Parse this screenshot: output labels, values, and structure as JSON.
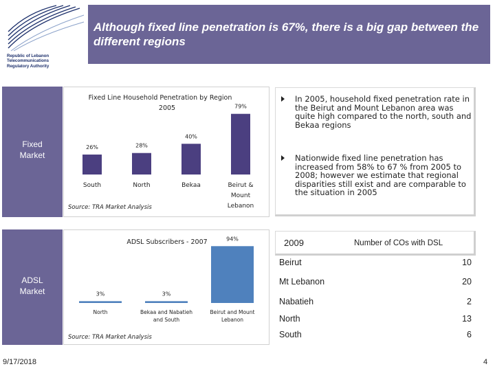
{
  "logo": {
    "text_lines": [
      "Republic of Lebanon",
      "Telecommunications",
      "Regulatory Authority"
    ]
  },
  "banner": {
    "title": "Although fixed line penetration is 67%, there is a big gap between the different regions"
  },
  "side_labels": {
    "fixed": [
      "Fixed",
      "Market"
    ],
    "adsl": [
      "ADSL",
      "Market"
    ]
  },
  "colors": {
    "accent": "#6b6596",
    "bar_fixed": "#4b3f80",
    "bar_adsl": "#4f81bd"
  },
  "chart_data": [
    {
      "type": "bar",
      "title": [
        "Fixed Line Household Penetration by Region",
        "2005"
      ],
      "categories": [
        [
          "South"
        ],
        [
          "North"
        ],
        [
          "Bekaa"
        ],
        [
          "Beirut &",
          "Mount",
          "Lebanon"
        ]
      ],
      "values": [
        26,
        28,
        40,
        79
      ],
      "value_labels": [
        "26%",
        "28%",
        "40%",
        "79%"
      ],
      "ylim": [
        0,
        85
      ],
      "source": "Source: TRA Market Analysis"
    },
    {
      "type": "bar",
      "title": [
        "ADSL Subscribers - 2007"
      ],
      "categories": [
        [
          "North"
        ],
        [
          "Bekaa and Nabatieh",
          "and South"
        ],
        [
          "Beirut and Mount",
          "Lebanon"
        ]
      ],
      "values": [
        3,
        3,
        94
      ],
      "value_labels": [
        "3%",
        "3%",
        "94%"
      ],
      "ylim": [
        0,
        100
      ],
      "source": "Source: TRA Market Analysis"
    }
  ],
  "bullets": [
    "In 2005, household fixed penetration rate in the Beirut and Mount Lebanon area was quite high compared to the north, south and Bekaa regions",
    "Nationwide fixed line penetration has increased from 58% to 67 % from 2005 to 2008; however we estimate that regional disparities still exist and are comparable to the situation in 2005"
  ],
  "dsl_table": {
    "year": "2009",
    "column": "Number of COs with DSL",
    "rows": [
      {
        "region": "Beirut",
        "count": "10"
      },
      {
        "region": "Mt Lebanon",
        "count": "20"
      },
      {
        "region": "Nabatieh",
        "count": "2"
      },
      {
        "region": "North",
        "count": "13"
      },
      {
        "region": "South",
        "count": "6"
      }
    ]
  },
  "footer": {
    "date": "9/17/2018",
    "page": "4"
  }
}
